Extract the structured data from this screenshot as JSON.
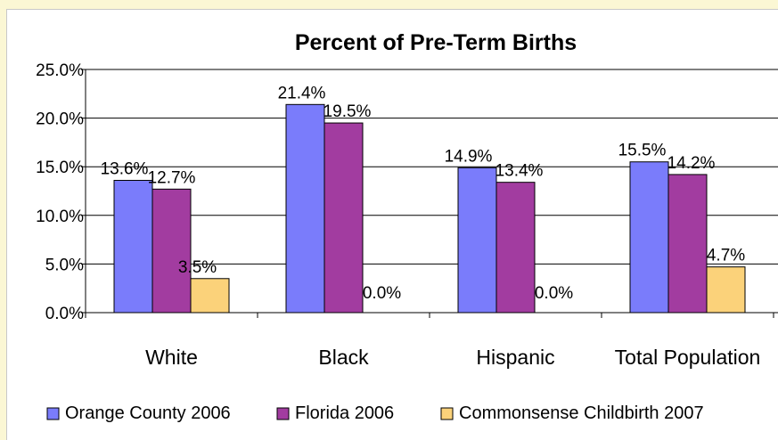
{
  "chart_data": {
    "type": "bar",
    "title": "Percent of Pre-Term Births",
    "xlabel": "",
    "ylabel": "",
    "ylim": [
      0,
      25
    ],
    "yticks": [
      "0.0%",
      "5.0%",
      "10.0%",
      "15.0%",
      "20.0%",
      "25.0%"
    ],
    "grid": true,
    "legend": "bottom",
    "categories": [
      "White",
      "Black",
      "Hispanic",
      "Total Population"
    ],
    "series": [
      {
        "name": "Orange County 2006",
        "color": "#7a7cfb",
        "values": [
          13.6,
          21.4,
          14.9,
          15.5
        ],
        "labels": [
          "13.6%",
          "21.4%",
          "14.9%",
          "15.5%"
        ]
      },
      {
        "name": "Florida 2006",
        "color": "#a23ca0",
        "values": [
          12.7,
          19.5,
          13.4,
          14.2
        ],
        "labels": [
          "12.7%",
          "19.5%",
          "13.4%",
          "14.2%"
        ]
      },
      {
        "name": "Commonsense Childbirth 2007",
        "color": "#fbd27a",
        "values": [
          3.5,
          0.0,
          0.0,
          4.7
        ],
        "labels": [
          "3.5%",
          "0.0%",
          "0.0%",
          "4.7%"
        ]
      }
    ]
  }
}
